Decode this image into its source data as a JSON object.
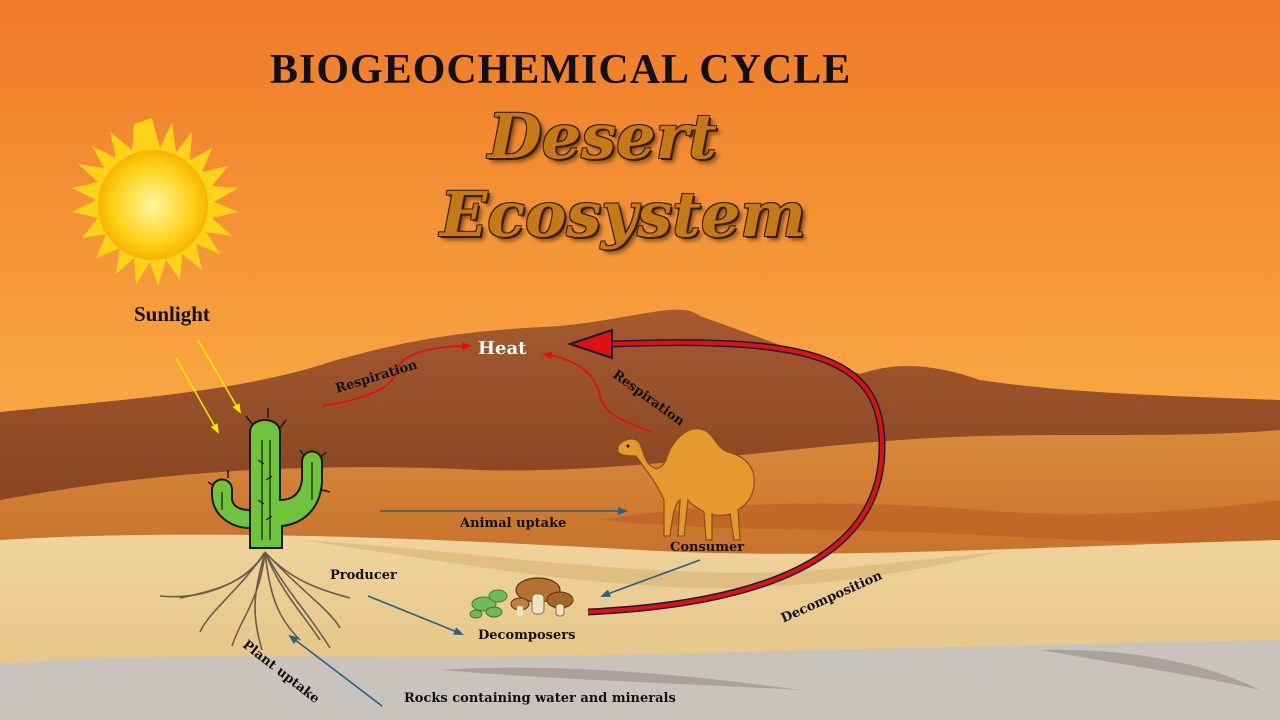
{
  "title": "BIOGEOCHEMICAL CYCLE",
  "subtitle_line1": "Desert",
  "subtitle_line2": "Ecosystem",
  "labels": {
    "sunlight": "Sunlight",
    "heat": "Heat",
    "respiration_producer": "Respiration",
    "respiration_consumer": "Respiration",
    "animal_uptake": "Animal uptake",
    "consumer": "Consumer",
    "producer": "Producer",
    "decomposers": "Decomposers",
    "decomposition": "Decomposition",
    "plant_uptake": "Plant uptake",
    "rocks": "Rocks containing water and minerals"
  },
  "colors": {
    "sky_top": "#f07a28",
    "sky_bottom": "#f7b24a",
    "mountain": "#a8592e",
    "sand": "#e8c98e",
    "respiration_arrow": "#e01010",
    "flow_arrow": "#2a6080",
    "sun": "#ffd21a"
  }
}
